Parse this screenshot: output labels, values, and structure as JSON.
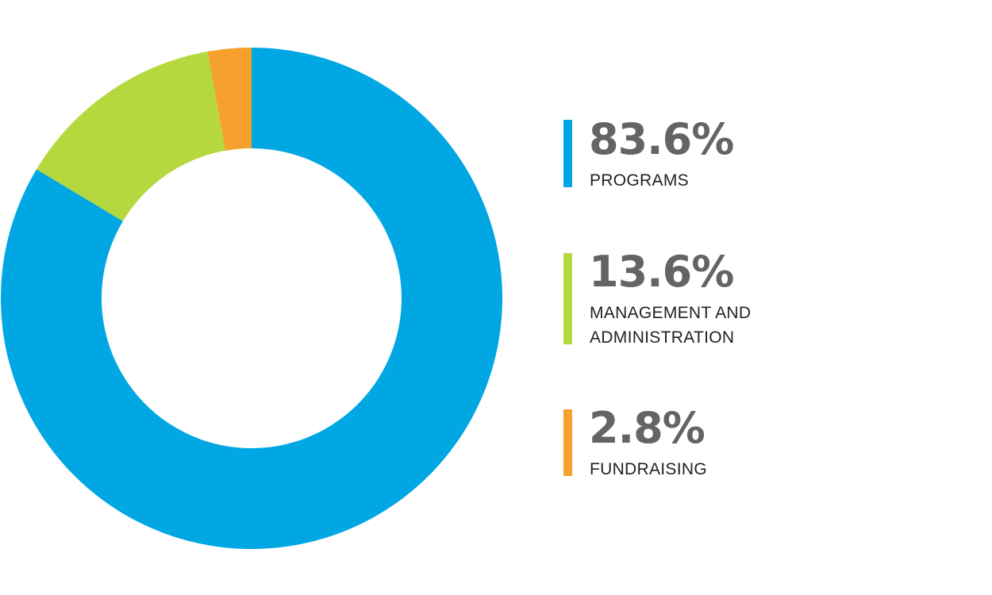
{
  "chart_data": {
    "type": "pie",
    "categories": [
      "PROGRAMS",
      "MANAGEMENT AND ADMINISTRATION",
      "FUNDRAISING"
    ],
    "values": [
      83.6,
      13.6,
      2.8
    ],
    "unit": "%",
    "colors": [
      "#00a7e3",
      "#b6d83f",
      "#f6a02d"
    ],
    "legend_position": "right",
    "donut": true
  },
  "legend": {
    "items": [
      {
        "value_text": "83.6%",
        "label_lines": [
          "PROGRAMS"
        ],
        "color": "#00a7e3"
      },
      {
        "value_text": "13.6%",
        "label_lines": [
          "MANAGEMENT AND",
          "ADMINISTRATION"
        ],
        "color": "#b6d83f"
      },
      {
        "value_text": "2.8%",
        "label_lines": [
          "FUNDRAISING"
        ],
        "color": "#f6a02d"
      }
    ]
  }
}
